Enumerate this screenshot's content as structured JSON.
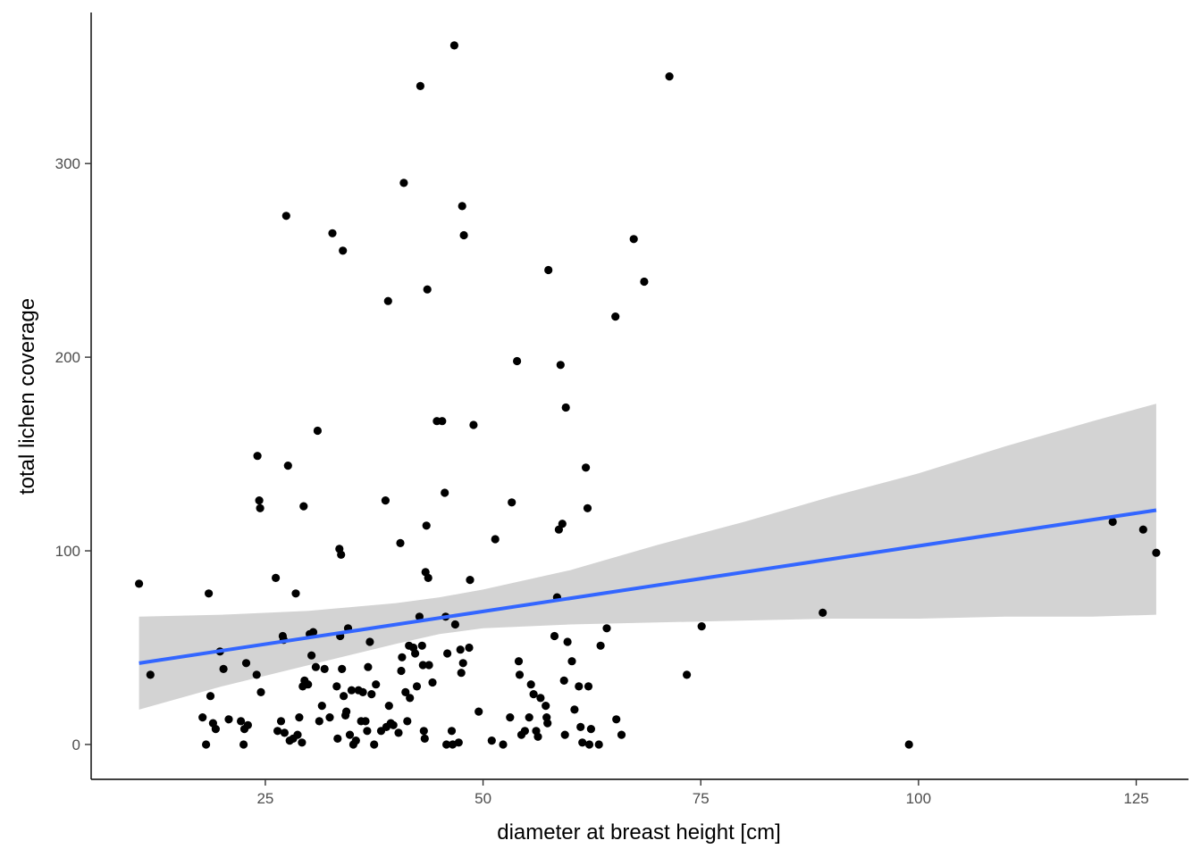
{
  "chart_data": {
    "type": "scatter",
    "title": "",
    "xlabel": "diameter at breast height [cm]",
    "ylabel": "total lichen coverage",
    "xlim": [
      5,
      131
    ],
    "ylim": [
      -18,
      378
    ],
    "x_ticks": [
      25,
      50,
      75,
      100,
      125
    ],
    "y_ticks": [
      0,
      100,
      200,
      300
    ],
    "grid": false,
    "legend": "none",
    "colors": {
      "points": "#000000",
      "fit_line": "#3366FF",
      "ribbon": "#D3D3D3"
    },
    "points": [
      [
        10.5,
        83
      ],
      [
        11.8,
        36
      ],
      [
        17.8,
        14
      ],
      [
        18.2,
        0
      ],
      [
        18.5,
        78
      ],
      [
        18.7,
        25
      ],
      [
        19,
        11
      ],
      [
        19.3,
        8
      ],
      [
        19.8,
        48
      ],
      [
        20.2,
        39
      ],
      [
        20.8,
        13
      ],
      [
        22.2,
        12
      ],
      [
        22.5,
        0
      ],
      [
        22.6,
        8
      ],
      [
        22.8,
        42
      ],
      [
        23,
        10
      ],
      [
        24,
        36
      ],
      [
        24.1,
        149
      ],
      [
        24.3,
        126
      ],
      [
        24.4,
        122
      ],
      [
        24.5,
        27
      ],
      [
        26.2,
        86
      ],
      [
        26.4,
        7
      ],
      [
        26.8,
        12
      ],
      [
        27,
        56
      ],
      [
        27.1,
        54
      ],
      [
        27.2,
        6
      ],
      [
        27.4,
        273
      ],
      [
        27.6,
        144
      ],
      [
        27.8,
        2
      ],
      [
        28.2,
        3
      ],
      [
        28.5,
        78
      ],
      [
        28.7,
        5
      ],
      [
        28.9,
        14
      ],
      [
        29.2,
        1
      ],
      [
        29.3,
        30
      ],
      [
        29.4,
        123
      ],
      [
        29.5,
        33
      ],
      [
        29.9,
        31
      ],
      [
        30.1,
        57
      ],
      [
        30.3,
        46
      ],
      [
        30.5,
        58
      ],
      [
        30.8,
        40
      ],
      [
        31,
        162
      ],
      [
        31.2,
        12
      ],
      [
        31.5,
        20
      ],
      [
        31.8,
        39
      ],
      [
        32.4,
        14
      ],
      [
        32.7,
        264
      ],
      [
        33.2,
        30
      ],
      [
        33.3,
        3
      ],
      [
        33.5,
        101
      ],
      [
        33.6,
        56
      ],
      [
        33.7,
        98
      ],
      [
        33.8,
        39
      ],
      [
        33.9,
        255
      ],
      [
        34,
        25
      ],
      [
        34.2,
        15
      ],
      [
        34.3,
        17
      ],
      [
        34.5,
        60
      ],
      [
        34.7,
        5
      ],
      [
        34.9,
        28
      ],
      [
        35.1,
        0
      ],
      [
        35.4,
        2
      ],
      [
        35.7,
        28
      ],
      [
        36,
        12
      ],
      [
        36.2,
        27
      ],
      [
        36.5,
        12
      ],
      [
        36.7,
        7
      ],
      [
        36.8,
        40
      ],
      [
        37,
        53
      ],
      [
        37.2,
        26
      ],
      [
        37.5,
        0
      ],
      [
        37.7,
        31
      ],
      [
        38.3,
        7
      ],
      [
        38.8,
        126
      ],
      [
        38.9,
        9
      ],
      [
        39.1,
        229
      ],
      [
        39.2,
        20
      ],
      [
        39.4,
        11
      ],
      [
        39.7,
        10
      ],
      [
        40.3,
        6
      ],
      [
        40.5,
        104
      ],
      [
        40.6,
        38
      ],
      [
        40.7,
        45
      ],
      [
        40.9,
        290
      ],
      [
        41.1,
        27
      ],
      [
        41.3,
        12
      ],
      [
        41.5,
        51
      ],
      [
        41.6,
        24
      ],
      [
        42,
        50
      ],
      [
        42.2,
        47
      ],
      [
        42.4,
        30
      ],
      [
        42.7,
        66
      ],
      [
        42.8,
        340
      ],
      [
        43,
        51
      ],
      [
        43.1,
        41
      ],
      [
        43.2,
        7
      ],
      [
        43.3,
        3
      ],
      [
        43.4,
        89
      ],
      [
        43.5,
        113
      ],
      [
        43.6,
        235
      ],
      [
        43.7,
        86
      ],
      [
        43.8,
        41
      ],
      [
        44.2,
        32
      ],
      [
        44.7,
        167
      ],
      [
        45.3,
        167
      ],
      [
        45.6,
        130
      ],
      [
        45.7,
        66
      ],
      [
        45.8,
        0
      ],
      [
        45.9,
        47
      ],
      [
        46.4,
        7
      ],
      [
        46.5,
        0
      ],
      [
        46.7,
        361
      ],
      [
        46.8,
        62
      ],
      [
        47.2,
        1
      ],
      [
        47.4,
        49
      ],
      [
        47.5,
        37
      ],
      [
        47.6,
        278
      ],
      [
        47.7,
        42
      ],
      [
        47.8,
        263
      ],
      [
        48.4,
        50
      ],
      [
        48.5,
        85
      ],
      [
        48.9,
        165
      ],
      [
        49.5,
        17
      ],
      [
        51,
        2
      ],
      [
        51.4,
        106
      ],
      [
        52.3,
        0
      ],
      [
        53.1,
        14
      ],
      [
        53.3,
        125
      ],
      [
        53.9,
        198
      ],
      [
        54.1,
        43
      ],
      [
        54.2,
        36
      ],
      [
        54.4,
        5
      ],
      [
        54.8,
        7
      ],
      [
        55.3,
        14
      ],
      [
        55.5,
        31
      ],
      [
        55.8,
        26
      ],
      [
        56.1,
        7
      ],
      [
        56.3,
        4
      ],
      [
        56.6,
        24
      ],
      [
        57.2,
        20
      ],
      [
        57.3,
        14
      ],
      [
        57.4,
        11
      ],
      [
        57.5,
        245
      ],
      [
        58.2,
        56
      ],
      [
        58.5,
        76
      ],
      [
        58.7,
        111
      ],
      [
        58.9,
        196
      ],
      [
        59.1,
        114
      ],
      [
        59.3,
        33
      ],
      [
        59.4,
        5
      ],
      [
        59.5,
        174
      ],
      [
        59.7,
        53
      ],
      [
        60.2,
        43
      ],
      [
        60.5,
        18
      ],
      [
        61,
        30
      ],
      [
        61.2,
        9
      ],
      [
        61.4,
        1
      ],
      [
        61.8,
        143
      ],
      [
        62,
        122
      ],
      [
        62.1,
        30
      ],
      [
        62.2,
        0
      ],
      [
        62.4,
        8
      ],
      [
        63.3,
        0
      ],
      [
        63.5,
        51
      ],
      [
        64.2,
        60
      ],
      [
        65.2,
        221
      ],
      [
        65.3,
        13
      ],
      [
        65.9,
        5
      ],
      [
        67.3,
        261
      ],
      [
        68.5,
        239
      ],
      [
        71.4,
        345
      ],
      [
        73.4,
        36
      ],
      [
        75.1,
        61
      ],
      [
        89,
        68
      ],
      [
        98.9,
        0
      ],
      [
        122.3,
        115
      ],
      [
        125.8,
        111
      ],
      [
        127.3,
        99
      ]
    ],
    "fit_line": {
      "x": [
        10.5,
        127.3
      ],
      "y": [
        42,
        121
      ]
    },
    "confidence_band": {
      "x": [
        10.5,
        20,
        30,
        40,
        45,
        50,
        60,
        70,
        80,
        90,
        100,
        110,
        120,
        127.3
      ],
      "lower": [
        18,
        30,
        41,
        52,
        57,
        60,
        62,
        63,
        64,
        65,
        65,
        66,
        66,
        67
      ],
      "upper": [
        66,
        67,
        69,
        73,
        76,
        80,
        90,
        103,
        115,
        128,
        140,
        154,
        167,
        176
      ]
    }
  }
}
